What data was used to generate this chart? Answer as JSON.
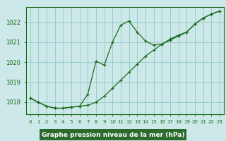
{
  "line1_x": [
    0,
    1,
    2,
    3,
    4,
    5,
    6,
    7,
    8,
    9,
    10,
    11,
    12,
    13,
    14,
    15,
    16,
    17,
    18,
    19,
    20,
    21,
    22,
    23
  ],
  "line1_y": [
    1018.2,
    1018.0,
    1017.8,
    1017.7,
    1017.7,
    1017.75,
    1017.8,
    1017.85,
    1018.0,
    1018.3,
    1018.7,
    1019.1,
    1019.5,
    1019.9,
    1020.3,
    1020.6,
    1020.9,
    1021.1,
    1021.3,
    1021.5,
    1021.9,
    1022.2,
    1022.4,
    1022.55
  ],
  "line2_x": [
    0,
    1,
    2,
    3,
    4,
    5,
    6,
    7,
    8,
    9,
    10,
    11,
    12,
    13,
    14,
    15,
    16,
    17,
    18,
    19,
    20,
    21,
    22,
    23
  ],
  "line2_y": [
    1018.2,
    1018.0,
    1017.8,
    1017.7,
    1017.7,
    1017.75,
    1017.8,
    1018.4,
    1020.05,
    1019.85,
    1021.0,
    1021.85,
    1022.05,
    1021.5,
    1021.05,
    1020.85,
    1020.9,
    1021.15,
    1021.35,
    1021.5,
    1021.9,
    1022.2,
    1022.4,
    1022.55
  ],
  "line_color": "#1a6b1a",
  "bg_color": "#cce8e8",
  "grid_color": "#99cccc",
  "xlabel": "Graphe pression niveau de la mer (hPa)",
  "xlabel_bg": "#2d6b2d",
  "xlabel_color": "#ffffff",
  "ylim": [
    1017.4,
    1022.75
  ],
  "xlim": [
    -0.5,
    23.5
  ],
  "yticks": [
    1018,
    1019,
    1020,
    1021,
    1022
  ],
  "xticks": [
    0,
    1,
    2,
    3,
    4,
    5,
    6,
    7,
    8,
    9,
    10,
    11,
    12,
    13,
    14,
    15,
    16,
    17,
    18,
    19,
    20,
    21,
    22,
    23
  ]
}
